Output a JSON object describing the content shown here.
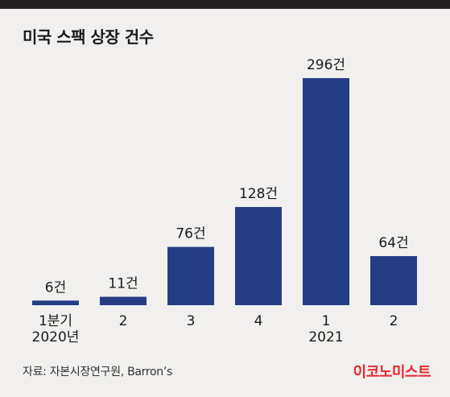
{
  "title": "미국 스팩 상장 건수",
  "source": "자료: 자본시장연구원, Barron’s",
  "brand": "이코노미스트",
  "colors": {
    "bar": "#253d84",
    "top_bar": "#231f20",
    "brand": "#e8262f",
    "background": "#f1f0ee"
  },
  "chart_data": {
    "type": "bar",
    "title": "미국 스팩 상장 건수",
    "categories": [
      "1분기\n2020년",
      "2",
      "3",
      "4",
      "1\n2021",
      "2"
    ],
    "values": [
      6,
      11,
      76,
      128,
      296,
      64
    ],
    "value_labels": [
      "6건",
      "11건",
      "76건",
      "128건",
      "296건",
      "64건"
    ],
    "xlabel": "",
    "ylabel": "",
    "ylim": [
      0,
      296
    ],
    "grid": false,
    "legend": "none"
  }
}
